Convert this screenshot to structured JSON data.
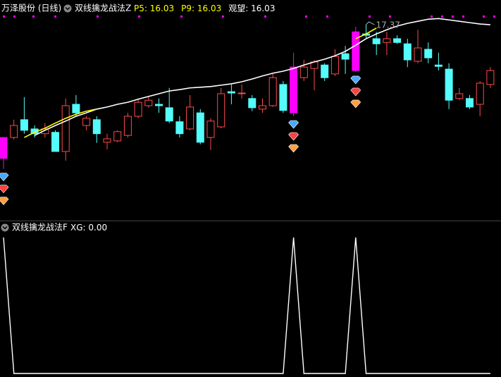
{
  "chart_data": [
    {
      "type": "candlestick",
      "title": "万泽股份 (日线)",
      "indicator": "双线擒龙战法Z",
      "legend": [
        {
          "label": "P5:",
          "value": 16.03,
          "color": "#ffff00"
        },
        {
          "label": "P9:",
          "value": 16.03,
          "color": "#ffff00"
        },
        {
          "label": "观望:",
          "value": 16.03,
          "color": "#ffffff"
        }
      ],
      "annotation": {
        "value": 17.37,
        "index": 35
      },
      "categories": [
        null,
        null,
        null,
        null,
        null,
        null,
        null,
        null,
        null,
        null,
        null,
        null,
        null,
        null,
        null,
        null,
        null,
        null,
        null,
        null,
        null,
        null,
        null,
        null,
        null,
        null,
        null,
        null,
        null,
        null,
        null,
        null,
        null,
        null,
        null,
        null,
        null,
        null,
        null,
        null,
        null,
        null,
        null,
        null,
        null,
        null,
        null,
        null
      ],
      "open": [
        14.07,
        14.07,
        14.59,
        14.32,
        14.18,
        14.22,
        13.66,
        15.04,
        14.42,
        14.59,
        13.93,
        13.97,
        14.13,
        14.69,
        15.0,
        15.04,
        14.94,
        14.53,
        14.32,
        14.79,
        14.07,
        14.38,
        15.41,
        15.35,
        15.21,
        14.9,
        15.0,
        15.62,
        16.13,
        15.82,
        16.09,
        16.19,
        15.93,
        16.52,
        17.16,
        17.1,
        16.96,
        16.85,
        16.96,
        16.81,
        16.3,
        16.65,
        16.19,
        16.07,
        15.21,
        15.21,
        15.04,
        15.62
      ],
      "close": [
        13.46,
        14.42,
        14.28,
        14.18,
        14.32,
        13.66,
        15.0,
        14.79,
        14.63,
        14.18,
        14.03,
        14.24,
        14.69,
        15.1,
        15.16,
        15.0,
        14.55,
        14.18,
        14.96,
        13.93,
        14.55,
        15.35,
        15.37,
        15.37,
        14.94,
        15.0,
        15.82,
        14.86,
        14.79,
        16.13,
        16.28,
        15.82,
        16.44,
        16.36,
        16.03,
        17.06,
        16.81,
        16.96,
        16.85,
        16.34,
        16.69,
        16.4,
        16.15,
        15.16,
        15.35,
        14.96,
        15.66,
        16.03
      ],
      "high": [
        14.07,
        14.59,
        15.25,
        14.42,
        14.49,
        14.28,
        15.21,
        15.31,
        14.69,
        14.69,
        14.18,
        14.28,
        14.79,
        15.21,
        15.25,
        15.21,
        15.52,
        14.69,
        15.31,
        14.9,
        14.63,
        15.52,
        15.62,
        15.62,
        15.31,
        15.21,
        15.93,
        15.72,
        16.55,
        16.34,
        16.34,
        16.24,
        16.65,
        16.75,
        17.31,
        17.37,
        17.16,
        17.16,
        17.06,
        16.96,
        17.22,
        16.85,
        16.55,
        16.24,
        15.52,
        15.31,
        15.72,
        16.13
      ],
      "low": [
        13.15,
        14.01,
        14.18,
        14.07,
        14.07,
        13.66,
        13.39,
        14.69,
        14.28,
        13.91,
        13.72,
        13.93,
        14.07,
        14.63,
        14.94,
        14.79,
        14.49,
        14.07,
        14.28,
        13.87,
        13.7,
        14.34,
        15.04,
        15.21,
        14.84,
        14.79,
        14.96,
        14.79,
        14.69,
        15.72,
        15.45,
        15.72,
        15.87,
        15.93,
        15.99,
        16.96,
        16.48,
        16.48,
        16.81,
        16.13,
        16.24,
        16.24,
        16.03,
        14.9,
        15.16,
        14.9,
        14.69,
        15.52
      ],
      "up_color": "#ff4a4a",
      "down_color": "#54fcfc",
      "signals": [
        0,
        28,
        34
      ],
      "signal_color": "#ff00ff",
      "series": [
        {
          "color": "#ffffff",
          "values": [
            null,
            null,
            null,
            14.13,
            14.28,
            14.42,
            14.55,
            14.69,
            14.79,
            14.9,
            14.96,
            15.04,
            15.1,
            15.19,
            15.27,
            15.35,
            15.43,
            15.47,
            15.52,
            15.54,
            15.56,
            15.6,
            15.64,
            15.7,
            15.78,
            15.87,
            15.95,
            16.01,
            16.09,
            16.19,
            16.28,
            16.36,
            16.46,
            16.59,
            16.77,
            16.96,
            17.1,
            17.22,
            17.33,
            17.41,
            17.47,
            17.53,
            17.55,
            17.51,
            17.47,
            17.43,
            17.39,
            17.37
          ]
        },
        {
          "color": "#ffff00",
          "values": [
            null,
            null,
            14.07,
            14.22,
            14.34,
            14.49,
            14.63,
            14.75,
            14.84,
            14.9,
            null,
            null,
            null,
            null,
            null,
            null,
            null,
            null,
            null,
            null,
            null,
            null,
            null,
            null,
            null,
            null,
            null,
            null,
            null,
            null,
            null,
            null,
            null,
            null,
            16.96,
            17.1,
            17.27,
            null,
            null,
            null,
            null,
            null,
            null,
            null,
            null,
            null,
            null,
            null
          ]
        }
      ],
      "ylim": [
        11.7,
        17.68
      ]
    },
    {
      "type": "line",
      "indicator": "双线擒龙战法F",
      "label": "XG:",
      "value": 0,
      "value_label": "0.00",
      "color": "#ffffff",
      "values": [
        1,
        0,
        0,
        0,
        0,
        0,
        0,
        0,
        0,
        0,
        0,
        0,
        0,
        0,
        0,
        0,
        0,
        0,
        0,
        0,
        0,
        0,
        0,
        0,
        0,
        0,
        0,
        0,
        1,
        0,
        0,
        0,
        0,
        0,
        1,
        0,
        0,
        0,
        0,
        0,
        0,
        0,
        0,
        0,
        0,
        0,
        0,
        0
      ],
      "ylim": [
        0,
        1
      ]
    }
  ]
}
